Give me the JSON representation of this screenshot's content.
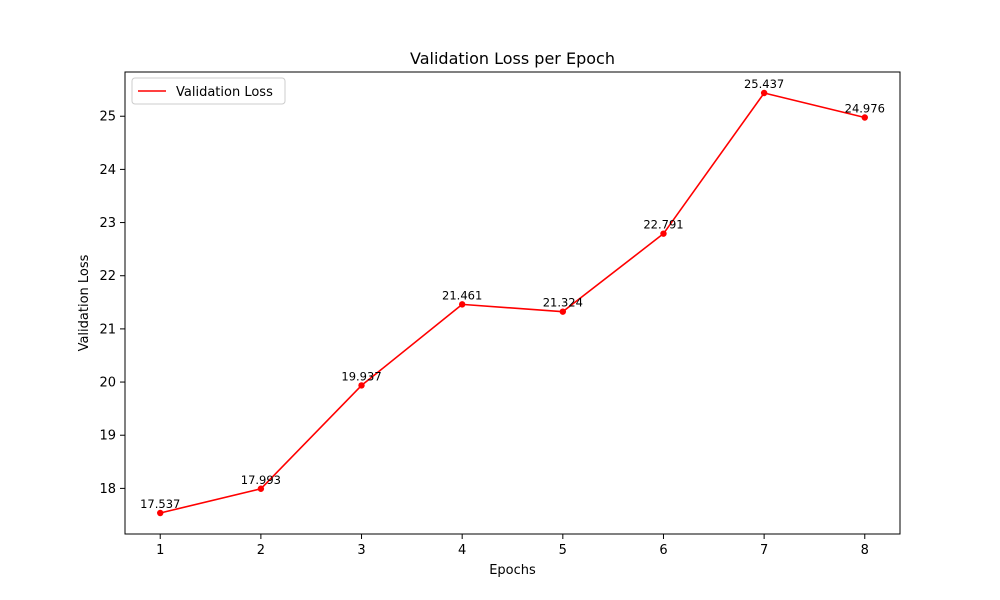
{
  "chart_data": {
    "type": "line",
    "title": "Validation Loss per Epoch",
    "xlabel": "Epochs",
    "ylabel": "Validation Loss",
    "x": [
      1,
      2,
      3,
      4,
      5,
      6,
      7,
      8
    ],
    "x_ticks": [
      "1",
      "2",
      "3",
      "4",
      "5",
      "6",
      "7",
      "8"
    ],
    "y_ticks": [
      "18",
      "19",
      "20",
      "21",
      "22",
      "23",
      "24",
      "25"
    ],
    "xlim": [
      0.65,
      8.35
    ],
    "ylim": [
      17.142,
      25.832
    ],
    "grid": false,
    "legend_position": "upper-left",
    "series": [
      {
        "name": "Validation Loss",
        "color": "#ff0000",
        "values": [
          17.537,
          17.993,
          19.937,
          21.461,
          21.324,
          22.791,
          25.437,
          24.976
        ],
        "labels": [
          "17.537",
          "17.993",
          "19.937",
          "21.461",
          "21.324",
          "22.791",
          "25.437",
          "24.976"
        ]
      }
    ]
  }
}
